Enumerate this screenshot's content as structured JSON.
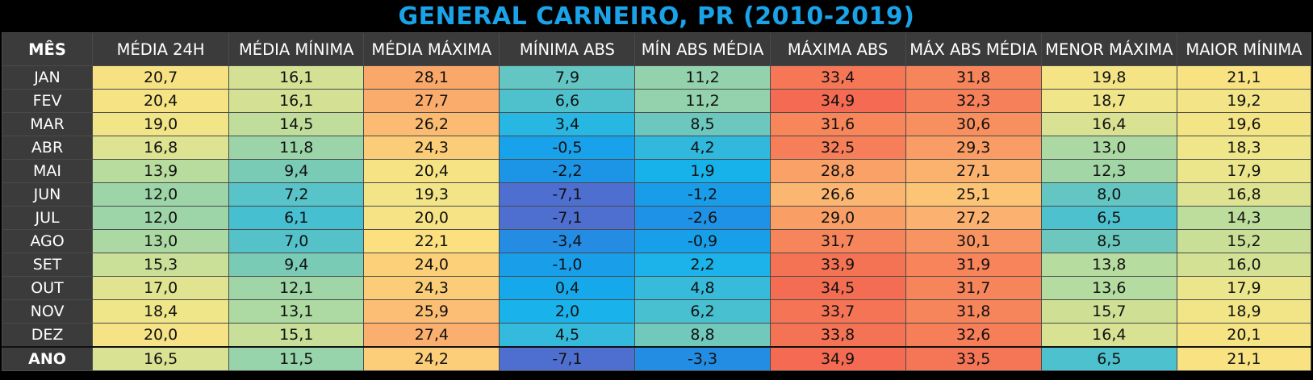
{
  "title": "GENERAL CARNEIRO, PR (2010-2019)",
  "chart_data": {
    "type": "table",
    "title": "GENERAL CARNEIRO, PR (2010-2019)",
    "columns": [
      "MÊS",
      "MÉDIA 24H",
      "MÉDIA MÍNIMA",
      "MÉDIA MÁXIMA",
      "MÍNIMA ABS",
      "MÍN ABS MÉDIA",
      "MÁXIMA ABS",
      "MÁX ABS MÉDIA",
      "MENOR MÁXIMA",
      "MAIOR MÍNIMA"
    ],
    "rows": [
      {
        "month": "JAN",
        "values": [
          "20,7",
          "16,1",
          "28,1",
          "7,9",
          "11,2",
          "33,4",
          "31,8",
          "19,8",
          "21,1"
        ]
      },
      {
        "month": "FEV",
        "values": [
          "20,4",
          "16,1",
          "27,7",
          "6,6",
          "11,2",
          "34,9",
          "32,3",
          "18,7",
          "19,2"
        ]
      },
      {
        "month": "MAR",
        "values": [
          "19,0",
          "14,5",
          "26,2",
          "3,4",
          "8,5",
          "31,6",
          "30,6",
          "16,4",
          "19,6"
        ]
      },
      {
        "month": "ABR",
        "values": [
          "16,8",
          "11,8",
          "24,3",
          "-0,5",
          "4,2",
          "32,5",
          "29,3",
          "13,0",
          "18,3"
        ]
      },
      {
        "month": "MAI",
        "values": [
          "13,9",
          "9,4",
          "20,4",
          "-2,2",
          "1,9",
          "28,8",
          "27,1",
          "12,3",
          "17,9"
        ]
      },
      {
        "month": "JUN",
        "values": [
          "12,0",
          "7,2",
          "19,3",
          "-7,1",
          "-1,2",
          "26,6",
          "25,1",
          "8,0",
          "16,8"
        ]
      },
      {
        "month": "JUL",
        "values": [
          "12,0",
          "6,1",
          "20,0",
          "-7,1",
          "-2,6",
          "29,0",
          "27,2",
          "6,5",
          "14,3"
        ]
      },
      {
        "month": "AGO",
        "values": [
          "13,0",
          "7,0",
          "22,1",
          "-3,4",
          "-0,9",
          "31,7",
          "30,1",
          "8,5",
          "15,2"
        ]
      },
      {
        "month": "SET",
        "values": [
          "15,3",
          "9,4",
          "24,0",
          "-1,0",
          "2,2",
          "33,9",
          "31,9",
          "13,8",
          "16,0"
        ]
      },
      {
        "month": "OUT",
        "values": [
          "17,0",
          "12,1",
          "24,3",
          "0,4",
          "4,8",
          "34,5",
          "31,7",
          "13,6",
          "17,9"
        ]
      },
      {
        "month": "NOV",
        "values": [
          "18,4",
          "13,1",
          "25,9",
          "2,0",
          "6,2",
          "33,7",
          "31,8",
          "15,7",
          "18,9"
        ]
      },
      {
        "month": "DEZ",
        "values": [
          "20,0",
          "15,1",
          "27,4",
          "4,5",
          "8,8",
          "33,8",
          "32,6",
          "16,4",
          "20,1"
        ]
      },
      {
        "month": "ANO",
        "values": [
          "16,5",
          "11,5",
          "24,2",
          "-7,1",
          "-3,3",
          "34,9",
          "33,5",
          "6,5",
          "21,1"
        ]
      }
    ]
  },
  "colors": {
    "title": "#1aa3e8",
    "header_bg": "#3b3b3b",
    "scale": [
      "#4f6fd0",
      "#1e90e6",
      "#12b0ee",
      "#3dbdd6",
      "#7fccb4",
      "#b8dc9e",
      "#eee68a",
      "#fde07e",
      "#fbb872",
      "#f88e5e",
      "#f46a52"
    ]
  }
}
